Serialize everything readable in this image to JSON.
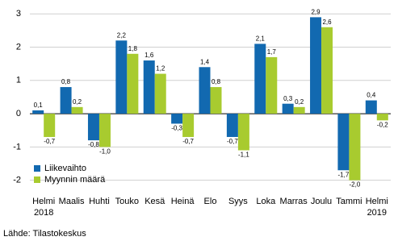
{
  "chart_data": {
    "type": "bar",
    "categories": [
      "Helmi\n2018",
      "Maalis",
      "Huhti",
      "Touko",
      "Kesä",
      "Heinä",
      "Elo",
      "Syys",
      "Loka",
      "Marras",
      "Joulu",
      "Tammi",
      "Helmi\n2019"
    ],
    "series": [
      {
        "name": "Liikevaihto",
        "color": "#1269b0",
        "values": [
          0.1,
          0.8,
          -0.8,
          2.2,
          1.6,
          -0.3,
          1.4,
          -0.7,
          2.1,
          0.3,
          2.9,
          -1.7,
          0.4
        ],
        "value_labels": [
          "0,1",
          "0,8",
          "-0,8",
          "2,2",
          "1,6",
          "-0,3",
          "1,4",
          "-0,7",
          "2,1",
          "0,3",
          "2,9",
          "-1,7",
          "0,4"
        ]
      },
      {
        "name": "Myynnin määrä",
        "color": "#a8cb2f",
        "values": [
          -0.7,
          0.2,
          -1.0,
          1.8,
          1.2,
          -0.7,
          0.8,
          -1.1,
          1.7,
          0.2,
          2.6,
          -2.0,
          -0.2
        ],
        "value_labels": [
          "-0,7",
          "0,2",
          "-1,0",
          "1,8",
          "1,2",
          "-0,7",
          "0,8",
          "-1,1",
          "1,7",
          "0,2",
          "2,6",
          "-2,0",
          "-0,2"
        ]
      }
    ],
    "ylim": [
      -2.3,
      3.2
    ],
    "yticks": [
      -2,
      -1,
      0,
      1,
      2,
      3
    ],
    "grid": true,
    "legend": "lower left",
    "source": "Lähde: Tilastokeskus"
  }
}
